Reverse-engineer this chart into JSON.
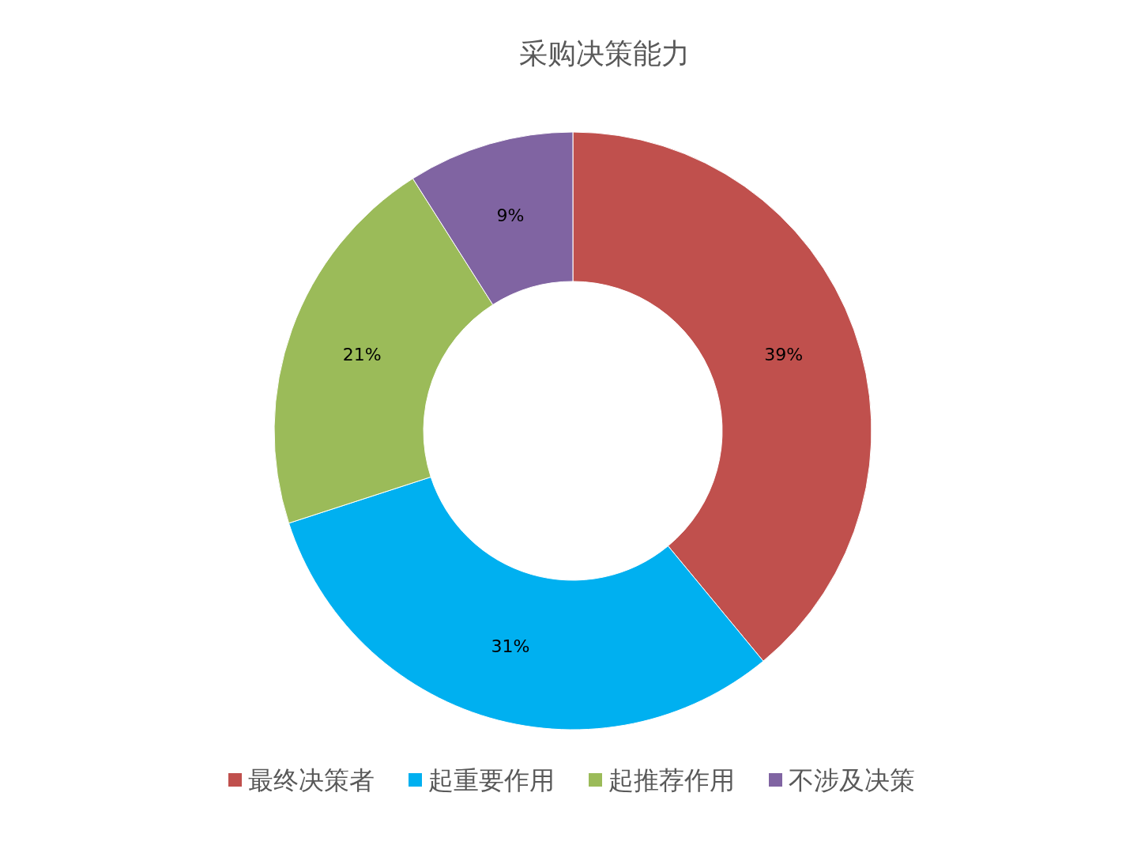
{
  "chart_data": {
    "type": "donut",
    "title": "采购决策能力",
    "categories": [
      "最终决策者",
      "起重要作用",
      "起推荐作用",
      "不涉及决策"
    ],
    "values": [
      39,
      31,
      21,
      9
    ],
    "colors": [
      "#c0504d",
      "#00b0f0",
      "#9bbb59",
      "#8064a2"
    ],
    "value_labels": [
      "39%",
      "31%",
      "21%",
      "9%"
    ],
    "legend": "bottom"
  }
}
